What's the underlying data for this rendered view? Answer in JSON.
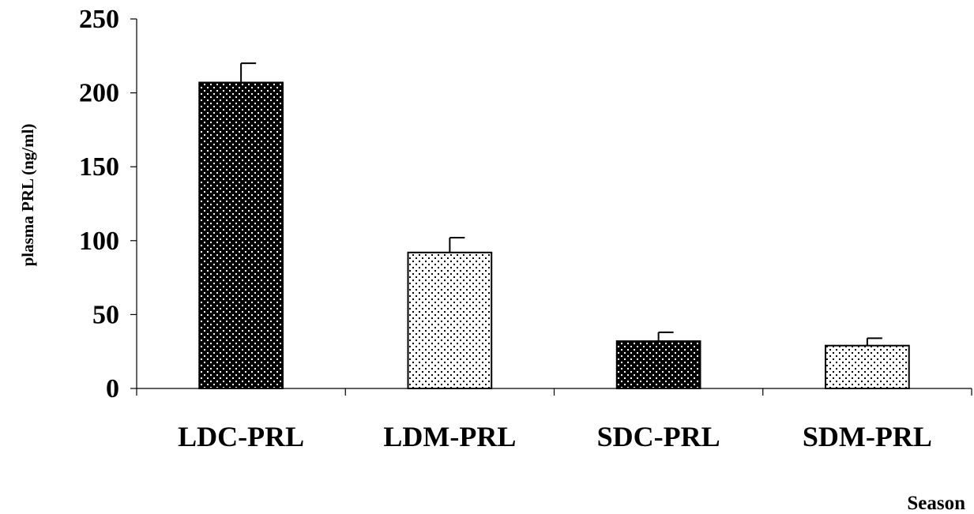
{
  "chart_data": {
    "type": "bar",
    "title": "",
    "xlabel": "Season",
    "ylabel": "plasma PRL (ng/ml)",
    "ylim": [
      0,
      250
    ],
    "yticks": [
      0,
      50,
      100,
      150,
      200,
      250
    ],
    "grid": false,
    "legend": "none",
    "categories": [
      "LDC-PRL",
      "LDM-PRL",
      "SDC-PRL",
      "SDM-PRL"
    ],
    "values": [
      207,
      92,
      32,
      29
    ],
    "error_upper": [
      13,
      10,
      6,
      5
    ],
    "patterns": [
      "dark-dotted",
      "light-dotted",
      "dark-dotted",
      "light-dotted"
    ],
    "colors": {
      "dark": "#000000",
      "light": "#ffffff",
      "axis": "#000000"
    }
  }
}
